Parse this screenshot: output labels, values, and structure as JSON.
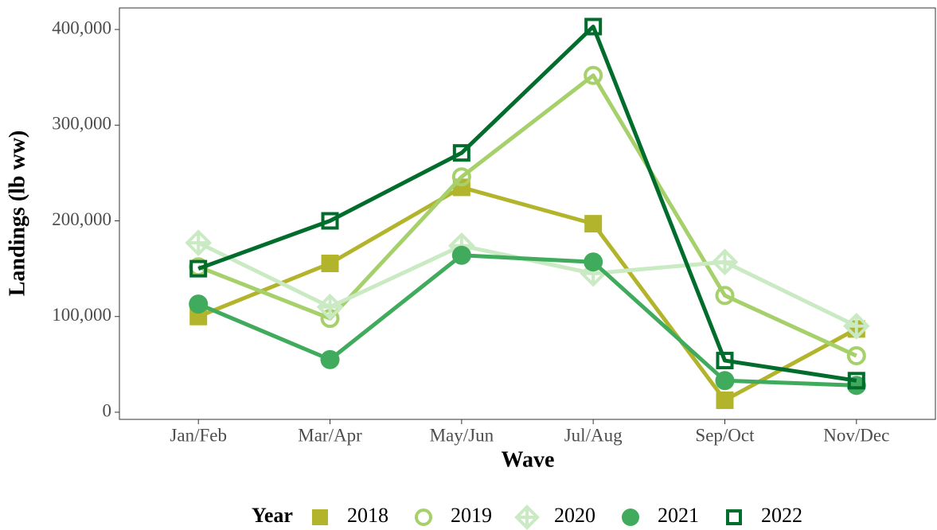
{
  "chart_data": {
    "type": "line",
    "x_label": "Wave",
    "y_label": "Landings (lb ww)",
    "legend_title": "Year",
    "legend_position": "bottom",
    "categories": [
      "Jan/Feb",
      "Mar/Apr",
      "May/Jun",
      "Jul/Aug",
      "Sep/Oct",
      "Nov/Dec"
    ],
    "ylim": [
      -7500,
      422500
    ],
    "yticks": [
      0,
      {
        "value": 100000,
        "label": "100,000"
      },
      {
        "value": 200000,
        "label": "200,000"
      },
      {
        "value": 300000,
        "label": "300,000"
      },
      {
        "value": 400000,
        "label": "400,000"
      }
    ],
    "grid": false,
    "series": [
      {
        "name": "2018",
        "color": "#b2b52b",
        "marker": "square-filled",
        "values": [
          100000,
          155500,
          235000,
          197000,
          12500,
          87000
        ]
      },
      {
        "name": "2019",
        "color": "#a6d06a",
        "marker": "circle-open",
        "values": [
          152000,
          98000,
          246000,
          352000,
          122000,
          59000
        ]
      },
      {
        "name": "2020",
        "color": "#c9eac3",
        "marker": "diamond-open",
        "values": [
          177000,
          110000,
          174000,
          145000,
          157000,
          90000
        ]
      },
      {
        "name": "2021",
        "color": "#41ab5d",
        "marker": "circle-filled",
        "values": [
          113000,
          55000,
          164000,
          157000,
          33000,
          28000
        ]
      },
      {
        "name": "2022",
        "color": "#006d2c",
        "marker": "square-open",
        "values": [
          150000,
          200000,
          271000,
          403000,
          54000,
          33000
        ]
      }
    ]
  }
}
